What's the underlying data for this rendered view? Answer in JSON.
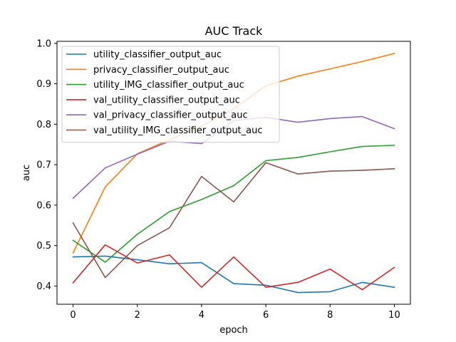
{
  "chart_data": {
    "type": "line",
    "title": "AUC Track",
    "xlabel": "epoch",
    "ylabel": "auc",
    "xlim": [
      -0.5,
      10.5
    ],
    "ylim": [
      0.355,
      1.005
    ],
    "xticks": [
      0,
      2,
      4,
      6,
      8,
      10
    ],
    "yticks": [
      0.4,
      0.5,
      0.6,
      0.7,
      0.8,
      0.9,
      1.0
    ],
    "xtick_labels": [
      "0",
      "2",
      "4",
      "6",
      "8",
      "10"
    ],
    "ytick_labels": [
      "0.4",
      "0.5",
      "0.6",
      "0.7",
      "0.8",
      "0.9",
      "1.0"
    ],
    "grid": false,
    "legend_position": "top-left",
    "x": [
      0,
      1,
      2,
      3,
      4,
      5,
      6,
      7,
      8,
      9,
      10
    ],
    "series": [
      {
        "name": "utility_classifier_output_auc",
        "color": "#1f77b4",
        "values": [
          0.472,
          0.474,
          0.465,
          0.455,
          0.458,
          0.406,
          0.402,
          0.384,
          0.386,
          0.409,
          0.397
        ]
      },
      {
        "name": "privacy_classifier_output_auc",
        "color": "#ff7f0e",
        "values": [
          0.482,
          0.645,
          0.727,
          0.762,
          0.795,
          0.838,
          0.895,
          0.919,
          0.937,
          0.955,
          0.975
        ]
      },
      {
        "name": "utility_IMG_classifier_output_auc",
        "color": "#2ca02c",
        "values": [
          0.513,
          0.459,
          0.528,
          0.584,
          0.614,
          0.648,
          0.71,
          0.718,
          0.732,
          0.745,
          0.748
        ]
      },
      {
        "name": "val_utility_classifier_output_auc",
        "color": "#d62728",
        "values": [
          0.408,
          0.502,
          0.457,
          0.477,
          0.397,
          0.472,
          0.397,
          0.409,
          0.442,
          0.391,
          0.446
        ]
      },
      {
        "name": "val_privacy_classifier_output_auc",
        "color": "#9467bd",
        "values": [
          0.617,
          0.692,
          0.726,
          0.758,
          0.752,
          0.809,
          0.817,
          0.805,
          0.814,
          0.819,
          0.789
        ]
      },
      {
        "name": "val_utility_IMG_classifier_output_auc",
        "color": "#8c564b",
        "values": [
          0.556,
          0.421,
          0.5,
          0.544,
          0.671,
          0.608,
          0.705,
          0.677,
          0.684,
          0.686,
          0.69
        ]
      }
    ]
  }
}
